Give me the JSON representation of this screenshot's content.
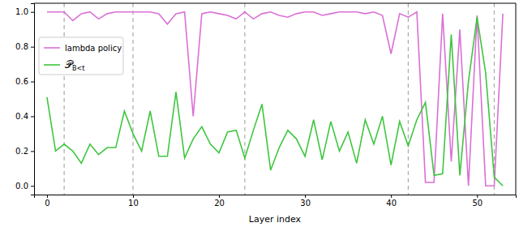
{
  "chart_data": {
    "type": "line",
    "x_label": "Layer index",
    "x": [
      0,
      1,
      2,
      3,
      4,
      5,
      6,
      7,
      8,
      9,
      10,
      11,
      12,
      13,
      14,
      15,
      16,
      17,
      18,
      19,
      20,
      21,
      22,
      23,
      24,
      25,
      26,
      27,
      28,
      29,
      30,
      31,
      32,
      33,
      34,
      35,
      36,
      37,
      38,
      39,
      40,
      41,
      42,
      43,
      44,
      45,
      46,
      47,
      48,
      49,
      50,
      51,
      52,
      53
    ],
    "series": [
      {
        "name": "lambda policy",
        "color": "#da70d6",
        "values": [
          1.0,
          1.0,
          1.0,
          0.95,
          0.99,
          1.0,
          0.96,
          0.99,
          1.0,
          1.0,
          1.0,
          1.0,
          1.0,
          0.99,
          0.93,
          0.99,
          1.0,
          0.4,
          0.99,
          1.0,
          0.99,
          0.98,
          0.96,
          1.0,
          0.96,
          0.99,
          1.0,
          0.98,
          0.97,
          0.99,
          1.0,
          1.0,
          0.98,
          0.99,
          1.0,
          1.0,
          1.0,
          0.99,
          1.0,
          0.98,
          0.76,
          0.99,
          0.97,
          1.0,
          0.02,
          0.02,
          0.99,
          0.14,
          0.9,
          0.0,
          0.98,
          0.0,
          0.0,
          0.99
        ]
      },
      {
        "name": "𝒫B<t",
        "color": "#3ec63e",
        "values": [
          0.51,
          0.2,
          0.24,
          0.2,
          0.13,
          0.24,
          0.18,
          0.22,
          0.22,
          0.43,
          0.3,
          0.2,
          0.43,
          0.17,
          0.17,
          0.54,
          0.16,
          0.27,
          0.34,
          0.24,
          0.19,
          0.31,
          0.32,
          0.16,
          0.32,
          0.47,
          0.09,
          0.22,
          0.32,
          0.27,
          0.17,
          0.38,
          0.15,
          0.37,
          0.2,
          0.31,
          0.13,
          0.38,
          0.24,
          0.4,
          0.12,
          0.37,
          0.23,
          0.38,
          0.48,
          0.06,
          0.07,
          0.87,
          0.06,
          0.6,
          0.97,
          0.65,
          0.05,
          0.0
        ]
      }
    ],
    "vlines": [
      2,
      10,
      23,
      42,
      52
    ],
    "xlim": [
      -1.5,
      54.5
    ],
    "ylim": [
      -0.05,
      1.05
    ],
    "xticks": [
      0,
      10,
      20,
      30,
      40,
      50
    ],
    "yticks": [
      {
        "value": 0,
        "label": "0.0"
      },
      {
        "value": 0.2,
        "label": "0.2"
      },
      {
        "value": 0.4,
        "label": "0.4"
      },
      {
        "value": 0.6,
        "label": "0.6"
      },
      {
        "value": 0.8,
        "label": "0.8"
      },
      {
        "value": 1.0,
        "label": "1.0"
      }
    ],
    "legend": "center left",
    "grid": false
  }
}
